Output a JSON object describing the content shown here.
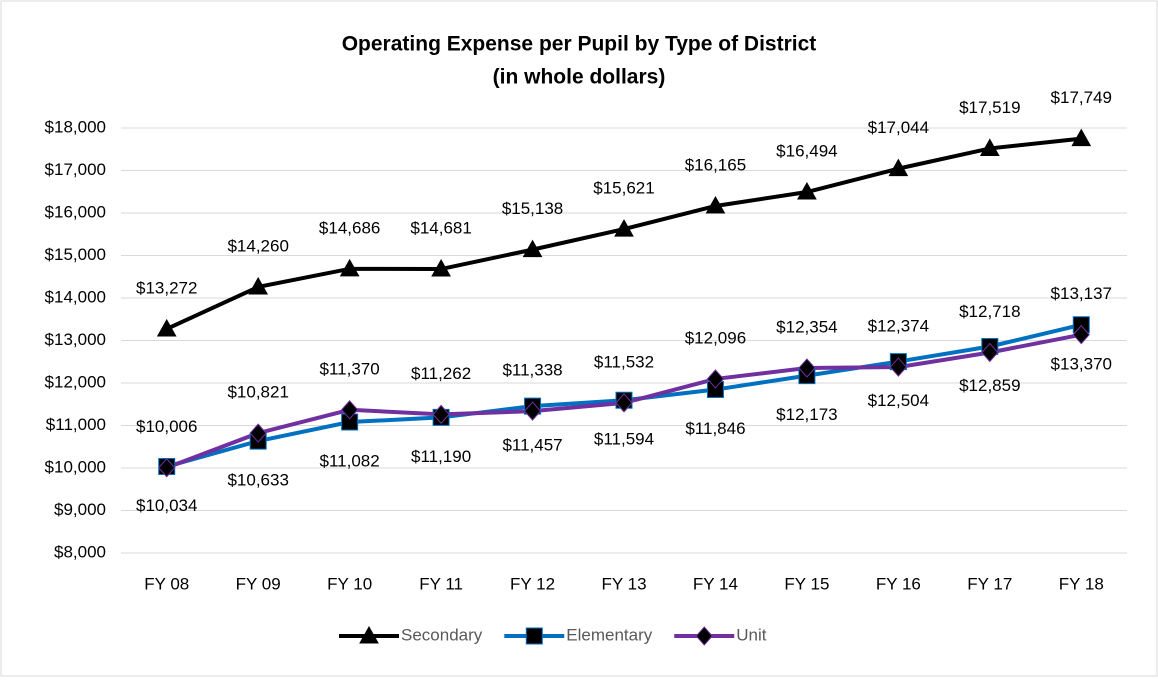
{
  "chart_data": {
    "type": "line",
    "title": [
      "Operating Expense per Pupil by Type of District",
      "(in whole dollars)"
    ],
    "categories": [
      "FY 08",
      "FY 09",
      "FY 10",
      "FY 11",
      "FY 12",
      "FY 13",
      "FY 14",
      "FY 15",
      "FY 16",
      "FY 17",
      "FY 18"
    ],
    "series": [
      {
        "name": "Secondary",
        "color": "#000000",
        "marker": "triangle",
        "values": [
          13272,
          14260,
          14686,
          14681,
          15138,
          15621,
          16165,
          16494,
          17044,
          17519,
          17749
        ],
        "value_labels": [
          "$13,272",
          "$14,260",
          "$14,686",
          "$14,681",
          "$15,138",
          "$15,621",
          "$16,165",
          "$16,494",
          "$17,044",
          "$17,519",
          "$17,749"
        ]
      },
      {
        "name": "Elementary",
        "color": "#0070c0",
        "marker": "square",
        "values": [
          10034,
          10633,
          11082,
          11190,
          11457,
          11594,
          11846,
          12173,
          12504,
          12859,
          13370
        ],
        "value_labels": [
          "$10,034",
          "$10,633",
          "$11,082",
          "$11,190",
          "$11,457",
          "$11,594",
          "$11,846",
          "$12,173",
          "$12,504",
          "$12,859",
          "$13,370"
        ]
      },
      {
        "name": "Unit",
        "color": "#7030a0",
        "marker": "diamond",
        "values": [
          10006,
          10821,
          11370,
          11262,
          11338,
          11532,
          12096,
          12354,
          12374,
          12718,
          13137
        ],
        "value_labels": [
          "$10,006",
          "$10,821",
          "$11,370",
          "$11,262",
          "$11,338",
          "$11,532",
          "$12,096",
          "$12,354",
          "$12,374",
          "$12,718",
          "$13,137"
        ]
      }
    ],
    "ylim": [
      8000,
      18000
    ],
    "yticks": [
      {
        "value": 8000,
        "label": "$8,000"
      },
      {
        "value": 9000,
        "label": "$9,000"
      },
      {
        "value": 10000,
        "label": "$10,000"
      },
      {
        "value": 11000,
        "label": "$11,000"
      },
      {
        "value": 12000,
        "label": "$12,000"
      },
      {
        "value": 13000,
        "label": "$13,000"
      },
      {
        "value": 14000,
        "label": "$14,000"
      },
      {
        "value": 15000,
        "label": "$15,000"
      },
      {
        "value": 16000,
        "label": "$16,000"
      },
      {
        "value": 17000,
        "label": "$17,000"
      },
      {
        "value": 18000,
        "label": "$18,000"
      }
    ],
    "grid": true,
    "legend": "bottom"
  }
}
